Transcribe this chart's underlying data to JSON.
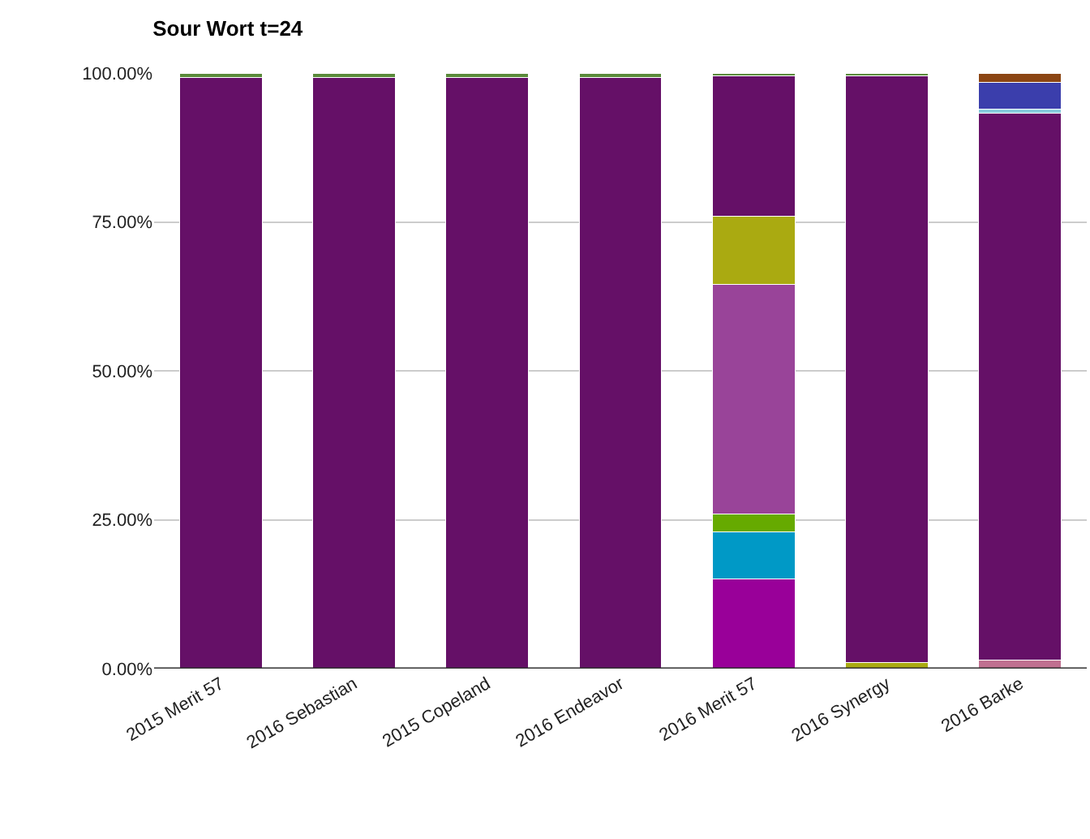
{
  "chart_data": {
    "type": "bar",
    "title": "Sour Wort t=24",
    "stacked": true,
    "grid": "y",
    "categories": [
      "2015 Merit 57",
      "2016 Sebastian",
      "2015 Copeland",
      "2016 Endeavor",
      "2016 Merit 57",
      "2016 Synergy",
      "2016 Barke"
    ],
    "ylim": [
      0,
      100
    ],
    "yticks": [
      {
        "value": 0,
        "label": "0.00%"
      },
      {
        "value": 25,
        "label": "25.00%"
      },
      {
        "value": 50,
        "label": "50.00%"
      },
      {
        "value": 75,
        "label": "75.00%"
      },
      {
        "value": 100,
        "label": "100.00%"
      }
    ],
    "series": [
      {
        "color": "#990099",
        "values": [
          0,
          0,
          0,
          0,
          15,
          0,
          0
        ]
      },
      {
        "color": "#c07090",
        "values": [
          0,
          0,
          0,
          0,
          0,
          0,
          1.5
        ]
      },
      {
        "color": "#0099c6",
        "values": [
          0,
          0,
          0,
          0,
          8,
          0,
          0
        ]
      },
      {
        "color": "#66aa00",
        "values": [
          0,
          0,
          0,
          0,
          3,
          0,
          0
        ]
      },
      {
        "color": "#994499",
        "values": [
          0,
          0,
          0,
          0,
          38.5,
          0,
          0
        ]
      },
      {
        "color": "#aaaa11",
        "values": [
          0,
          0,
          0,
          0,
          11.5,
          1,
          0
        ]
      },
      {
        "color": "#651067",
        "values": [
          99.2,
          99.2,
          99.2,
          99.2,
          23.5,
          98.5,
          91.8
        ]
      },
      {
        "color": "#88ccdd",
        "values": [
          0,
          0,
          0,
          0,
          0,
          0,
          0.7
        ]
      },
      {
        "color": "#3b3eac",
        "values": [
          0,
          0,
          0,
          0,
          0,
          0,
          4.5
        ]
      },
      {
        "color": "#5a8a3a",
        "values": [
          0.8,
          0.8,
          0.8,
          0.8,
          0.5,
          0.5,
          0
        ]
      },
      {
        "color": "#8b4513",
        "values": [
          0,
          0,
          0,
          0,
          0,
          0,
          1.5
        ]
      }
    ]
  }
}
